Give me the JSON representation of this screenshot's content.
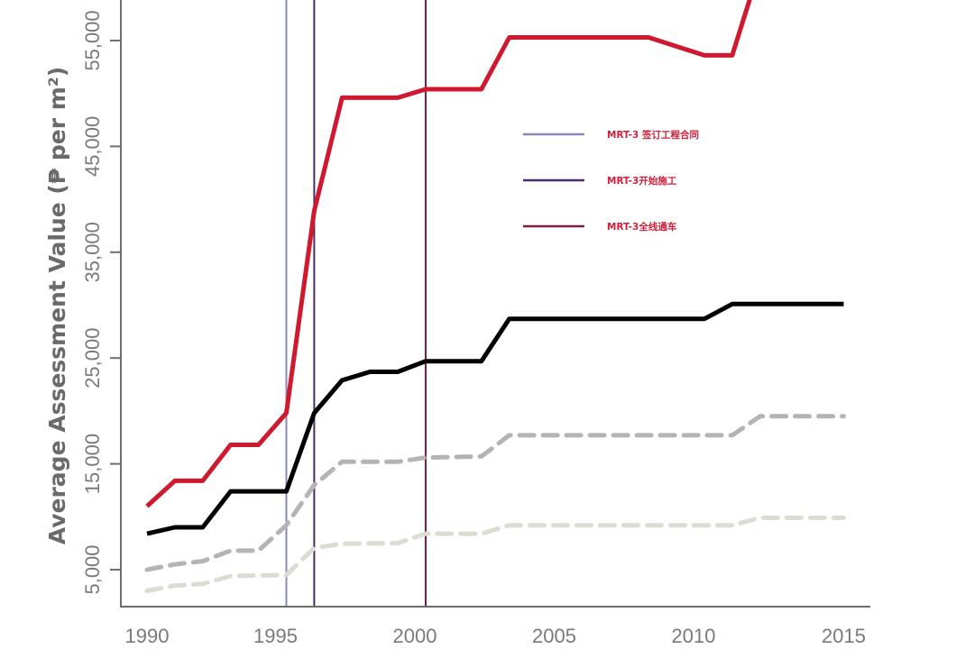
{
  "chart_data": {
    "type": "line",
    "title": "",
    "xlabel": "",
    "ylabel": "Average Assessment Value (₱ per m²)",
    "xlim": [
      1990,
      2015
    ],
    "ylim": [
      1500,
      59000
    ],
    "grid": false,
    "x_ticks": [
      1990,
      1995,
      2000,
      2005,
      2010,
      2015
    ],
    "x_tick_labels": [
      "1990",
      "1995",
      "2000",
      "2005",
      "2010",
      "2015"
    ],
    "y_ticks": [
      5000,
      15000,
      25000,
      35000,
      45000,
      55000
    ],
    "y_tick_labels": [
      "5,000",
      "15,000",
      "25,000",
      "35,000",
      "45,000",
      "55,000"
    ],
    "series": [
      {
        "name": "red-series",
        "color": "#d0182e",
        "dash": false,
        "points": [
          [
            1990,
            11000
          ],
          [
            1991,
            13400
          ],
          [
            1992,
            13400
          ],
          [
            1993,
            16800
          ],
          [
            1994,
            16800
          ],
          [
            1995,
            19800
          ],
          [
            1996,
            38900
          ],
          [
            1997,
            49600
          ],
          [
            1999,
            49600
          ],
          [
            2000,
            50400
          ],
          [
            2002,
            50400
          ],
          [
            2003,
            55300
          ],
          [
            2008,
            55300
          ],
          [
            2010,
            53600
          ],
          [
            2011,
            53600
          ],
          [
            2012,
            62000
          ]
        ]
      },
      {
        "name": "black-series",
        "color": "#000000",
        "dash": false,
        "points": [
          [
            1990,
            8400
          ],
          [
            1991,
            9000
          ],
          [
            1992,
            9000
          ],
          [
            1993,
            12400
          ],
          [
            1995,
            12400
          ],
          [
            1996,
            19800
          ],
          [
            1997,
            22900
          ],
          [
            1998,
            23700
          ],
          [
            1999,
            23700
          ],
          [
            2000,
            24700
          ],
          [
            2002,
            24700
          ],
          [
            2003,
            28700
          ],
          [
            2010,
            28700
          ],
          [
            2011,
            30100
          ],
          [
            2015,
            30100
          ]
        ]
      },
      {
        "name": "gray-dashed-series",
        "color": "#b4b4b4",
        "dash": true,
        "points": [
          [
            1990,
            5000
          ],
          [
            1991,
            5500
          ],
          [
            1992,
            5800
          ],
          [
            1993,
            6800
          ],
          [
            1994,
            6800
          ],
          [
            1995,
            9200
          ],
          [
            1996,
            13000
          ],
          [
            1997,
            15200
          ],
          [
            1999,
            15200
          ],
          [
            2000,
            15600
          ],
          [
            2002,
            15700
          ],
          [
            2003,
            17700
          ],
          [
            2011,
            17700
          ],
          [
            2012,
            19500
          ],
          [
            2015,
            19500
          ]
        ]
      },
      {
        "name": "light-dashed-series",
        "color": "#dcdcd2",
        "dash": true,
        "points": [
          [
            1990,
            3000
          ],
          [
            1991,
            3500
          ],
          [
            1992,
            3650
          ],
          [
            1993,
            4400
          ],
          [
            1995,
            4500
          ],
          [
            1996,
            7050
          ],
          [
            1997,
            7450
          ],
          [
            1999,
            7500
          ],
          [
            2000,
            8400
          ],
          [
            2002,
            8400
          ],
          [
            2003,
            9200
          ],
          [
            2011,
            9200
          ],
          [
            2012,
            9900
          ],
          [
            2015,
            9900
          ]
        ]
      }
    ],
    "events": [
      {
        "year": 1995,
        "label": "MRT-3 签订工程合同",
        "color": "#8a88b8"
      },
      {
        "year": 1996,
        "label": "MRT-3开始施工",
        "color": "#4a2c6a"
      },
      {
        "year": 2000,
        "label": "MRT-3全线通车",
        "color": "#7a1e45"
      }
    ],
    "legend_position": "top-center"
  }
}
